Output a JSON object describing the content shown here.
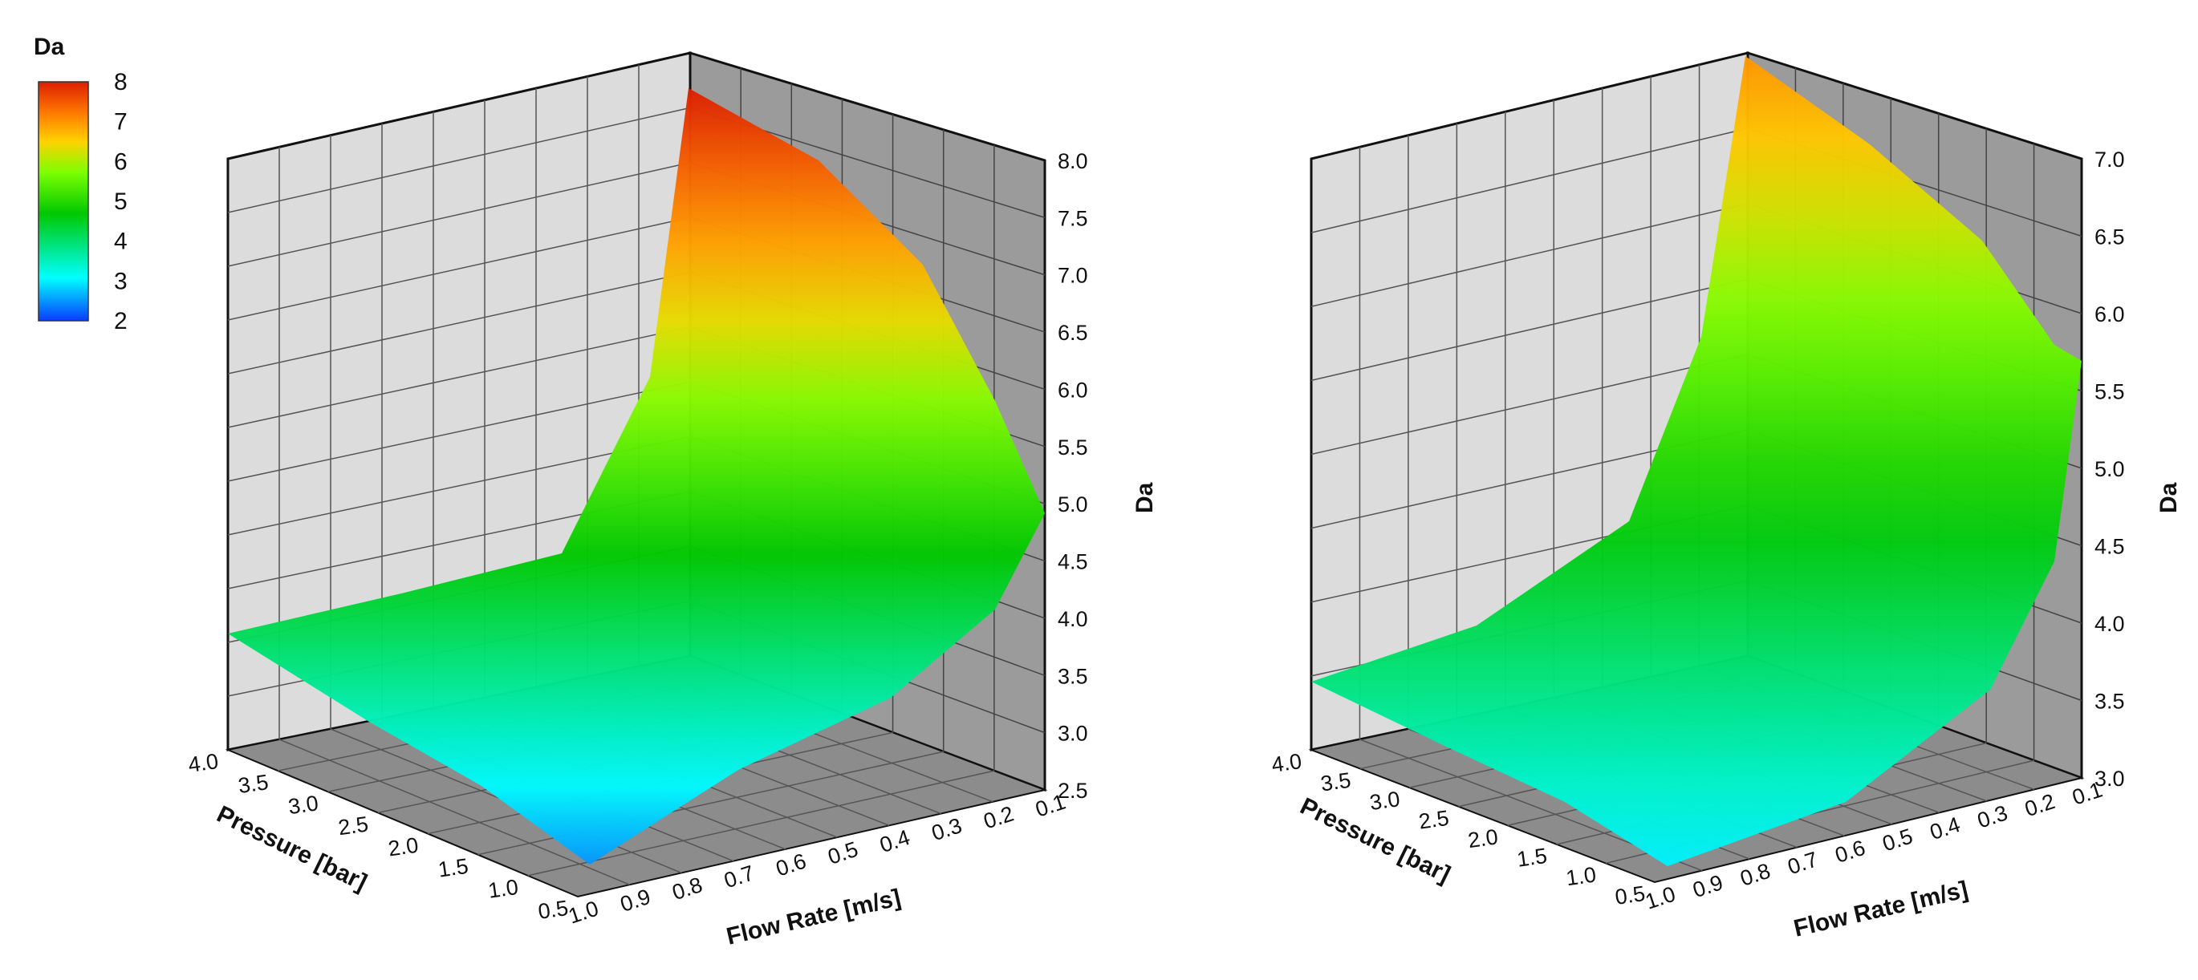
{
  "legend": {
    "title": "Da",
    "labels": [
      "8",
      "7",
      "6",
      "5",
      "4",
      "3",
      "2"
    ],
    "range": [
      2,
      8
    ],
    "colors": [
      "#0a3cff",
      "#00ffff",
      "#00c800",
      "#7cff00",
      "#ffd200",
      "#ff7a00",
      "#dc1e00"
    ]
  },
  "chart_data": [
    {
      "type": "surface",
      "xlabel": "Flow Rate [m/s]",
      "ylabel": "Pressure [bar]",
      "zlabel": "Da",
      "x_ticks": [
        "1.0",
        "0.9",
        "0.8",
        "0.7",
        "0.6",
        "0.5",
        "0.4",
        "0.3",
        "0.2",
        "0.1"
      ],
      "y_ticks": [
        "0.5",
        "1.0",
        "1.5",
        "2.0",
        "2.5",
        "3.0",
        "3.5",
        "4.0"
      ],
      "z_ticks": [
        "2.5",
        "3.0",
        "3.5",
        "4.0",
        "4.5",
        "5.0",
        "5.5",
        "6.0",
        "6.5",
        "7.0",
        "7.5",
        "8.0"
      ],
      "xlim": [
        0.1,
        1.0
      ],
      "ylim": [
        0.5,
        4.0
      ],
      "zlim": [
        2.5,
        8.0
      ],
      "corner_values": [
        {
          "flow": 1.0,
          "pressure": 0.5,
          "da": 2.6
        },
        {
          "flow": 1.0,
          "pressure": 4.0,
          "da": 3.8
        },
        {
          "flow": 0.1,
          "pressure": 0.5,
          "da": 4.8
        },
        {
          "flow": 0.1,
          "pressure": 4.0,
          "da": 8.0
        }
      ],
      "grid": true
    },
    {
      "type": "surface",
      "xlabel": "Flow Rate [m/s]",
      "ylabel": "Pressure [bar]",
      "zlabel": "Da",
      "x_ticks": [
        "1.0",
        "0.9",
        "0.8",
        "0.7",
        "0.6",
        "0.5",
        "0.4",
        "0.3",
        "0.2",
        "0.1"
      ],
      "y_ticks": [
        "0.5",
        "1.0",
        "1.5",
        "2.0",
        "2.5",
        "3.0",
        "3.5",
        "4.0"
      ],
      "z_ticks": [
        "3.0",
        "3.5",
        "4.0",
        "4.5",
        "5.0",
        "5.5",
        "6.0",
        "6.5",
        "7.0"
      ],
      "xlim": [
        0.1,
        1.0
      ],
      "ylim": [
        0.5,
        4.0
      ],
      "zlim": [
        3.0,
        7.0
      ],
      "corner_values": [
        {
          "flow": 1.0,
          "pressure": 0.5,
          "da": 3.3
        },
        {
          "flow": 1.0,
          "pressure": 4.0,
          "da": 3.5
        },
        {
          "flow": 0.1,
          "pressure": 0.5,
          "da": 5.6
        },
        {
          "flow": 0.1,
          "pressure": 4.0,
          "da": 7.0
        }
      ],
      "grid": true
    }
  ]
}
